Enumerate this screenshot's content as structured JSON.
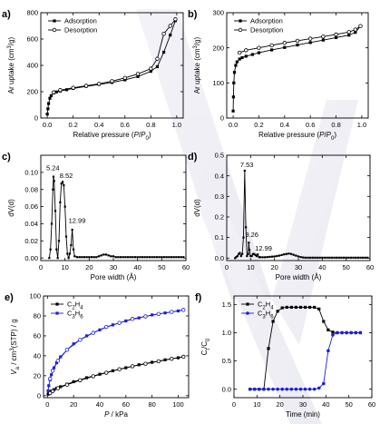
{
  "chart_data": [
    {
      "id": "a",
      "type": "line",
      "panel_label": "a)",
      "xlabel": "Relative pressure (P/P0)",
      "ylabel": "Ar uptake (cm3/g)",
      "xlim": [
        -0.05,
        1.05
      ],
      "ylim": [
        0,
        800
      ],
      "xticks": [
        0.0,
        0.2,
        0.4,
        0.6,
        0.8,
        1.0
      ],
      "xtick_labels": [
        "0.0",
        "0.2",
        "0.4",
        "0.6",
        "0.8",
        "1.0"
      ],
      "yticks": [
        0,
        200,
        400,
        600,
        800
      ],
      "ytick_labels": [
        "0",
        "200",
        "400",
        "600",
        "800"
      ],
      "legend_position": "top-left",
      "series": [
        {
          "name": "Adsorption",
          "marker": "filled-square",
          "color": "#000000",
          "x": [
            0.0,
            0.005,
            0.01,
            0.02,
            0.03,
            0.05,
            0.07,
            0.1,
            0.15,
            0.2,
            0.3,
            0.4,
            0.5,
            0.6,
            0.7,
            0.8,
            0.85,
            0.9,
            0.95,
            0.99
          ],
          "y": [
            30,
            70,
            110,
            150,
            170,
            190,
            198,
            205,
            215,
            225,
            240,
            255,
            270,
            290,
            315,
            355,
            390,
            500,
            630,
            740
          ]
        },
        {
          "name": "Desorption",
          "marker": "open-circle",
          "color": "#000000",
          "x": [
            0.99,
            0.95,
            0.9,
            0.85,
            0.8,
            0.7,
            0.6,
            0.5,
            0.4,
            0.3,
            0.2,
            0.1,
            0.05
          ],
          "y": [
            750,
            700,
            640,
            450,
            375,
            335,
            305,
            280,
            260,
            245,
            230,
            212,
            195
          ]
        }
      ]
    },
    {
      "id": "b",
      "type": "line",
      "panel_label": "b)",
      "xlabel": "Relative pressure (P/P0)",
      "ylabel": "Ar uptake (cm3/g)",
      "xlim": [
        -0.05,
        1.05
      ],
      "ylim": [
        0,
        300
      ],
      "xticks": [
        0.0,
        0.2,
        0.4,
        0.6,
        0.8,
        1.0
      ],
      "xtick_labels": [
        "0.0",
        "0.2",
        "0.4",
        "0.6",
        "0.8",
        "1.0"
      ],
      "yticks": [
        0,
        100,
        200,
        300
      ],
      "ytick_labels": [
        "0",
        "100",
        "200",
        "300"
      ],
      "legend_position": "top-left",
      "series": [
        {
          "name": "Adsorption",
          "marker": "filled-square",
          "color": "#000000",
          "x": [
            0.0,
            0.002,
            0.005,
            0.01,
            0.02,
            0.03,
            0.05,
            0.07,
            0.1,
            0.15,
            0.2,
            0.3,
            0.4,
            0.5,
            0.6,
            0.7,
            0.8,
            0.9,
            0.95,
            0.99
          ],
          "y": [
            20,
            60,
            100,
            130,
            150,
            160,
            168,
            172,
            176,
            181,
            186,
            194,
            201,
            208,
            215,
            222,
            229,
            236,
            244,
            262
          ]
        },
        {
          "name": "Desorption",
          "marker": "open-circle",
          "color": "#000000",
          "x": [
            0.99,
            0.95,
            0.9,
            0.8,
            0.7,
            0.6,
            0.5,
            0.4,
            0.3,
            0.2,
            0.1,
            0.05
          ],
          "y": [
            262,
            252,
            245,
            238,
            232,
            226,
            220,
            214,
            207,
            200,
            193,
            186
          ]
        }
      ]
    },
    {
      "id": "c",
      "type": "line",
      "panel_label": "c)",
      "xlabel": "Pore width (Å)",
      "ylabel": "dV(d)",
      "xlim": [
        0,
        60
      ],
      "ylim": [
        -0.003,
        0.12
      ],
      "xticks": [
        0,
        10,
        20,
        30,
        40,
        50,
        60
      ],
      "xtick_labels": [
        "0",
        "10",
        "20",
        "30",
        "40",
        "50",
        "60"
      ],
      "yticks": [
        0.0,
        0.02,
        0.04,
        0.06,
        0.08,
        0.1
      ],
      "ytick_labels": [
        "0.00",
        "0.02",
        "0.04",
        "0.06",
        "0.08",
        "0.10"
      ],
      "annotations": [
        {
          "text": "5.24",
          "x": 5.24,
          "y": 0.098
        },
        {
          "text": "8.52",
          "x": 8.52,
          "y": 0.089
        },
        {
          "text": "12.99",
          "x": 12.99,
          "y": 0.037
        }
      ],
      "series": [
        {
          "name": "",
          "marker": "filled-square-small",
          "color": "#000000",
          "x": [
            3.5,
            4,
            4.5,
            5,
            5.24,
            5.5,
            6,
            6.5,
            7,
            7.5,
            8,
            8.52,
            9,
            9.5,
            10,
            10.5,
            11,
            11.5,
            12,
            12.5,
            12.99,
            13.5,
            14,
            15,
            16,
            17,
            18,
            19,
            20,
            21,
            22,
            23,
            24,
            25,
            26,
            27,
            28,
            29,
            30,
            31,
            32,
            33,
            34,
            35,
            36,
            37,
            38,
            39,
            40,
            41,
            42,
            43,
            44,
            45,
            46,
            47,
            48,
            49,
            50,
            51,
            52,
            53,
            54,
            55,
            56,
            57,
            58,
            59
          ],
          "y": [
            0.0,
            0.01,
            0.04,
            0.08,
            0.095,
            0.09,
            0.055,
            0.01,
            0.0,
            0.02,
            0.065,
            0.087,
            0.089,
            0.085,
            0.06,
            0.025,
            0.005,
            0.0,
            0.005,
            0.015,
            0.033,
            0.01,
            0.002,
            0.001,
            0.001,
            0.001,
            0.001,
            0.001,
            0.001,
            0.001,
            0.001,
            0.001,
            0.002,
            0.003,
            0.004,
            0.004,
            0.003,
            0.002,
            0.002,
            0.001,
            0.001,
            0.001,
            0.001,
            0.001,
            0.001,
            0.001,
            0.001,
            0.001,
            0.001,
            0.001,
            0.001,
            0.001,
            0.001,
            0.001,
            0.001,
            0.001,
            0.001,
            0.001,
            0.001,
            0.001,
            0.001,
            0.001,
            0.001,
            0.001,
            0.001,
            0.001,
            0.001,
            0.001
          ]
        }
      ]
    },
    {
      "id": "d",
      "type": "line",
      "panel_label": "d)",
      "xlabel": "Pore width (Å)",
      "ylabel": "dV(d)",
      "xlim": [
        0,
        60
      ],
      "ylim": [
        -0.012,
        0.5
      ],
      "xticks": [
        0,
        10,
        20,
        30,
        40,
        50,
        60
      ],
      "xtick_labels": [
        "0",
        "10",
        "20",
        "30",
        "40",
        "50",
        "60"
      ],
      "yticks": [
        0.0,
        0.1,
        0.2,
        0.3,
        0.4,
        0.5
      ],
      "ytick_labels": [
        "0.0",
        "0.1",
        "0.2",
        "0.3",
        "0.4",
        "0.5"
      ],
      "annotations": [
        {
          "text": "7.53",
          "x": 7.53,
          "y": 0.425
        },
        {
          "text": "9.26",
          "x": 9.26,
          "y": 0.08
        },
        {
          "text": "12.99",
          "x": 12.99,
          "y": 0.02
        }
      ],
      "series": [
        {
          "name": "",
          "marker": "filled-square-small",
          "color": "#000000",
          "x": [
            3.5,
            4,
            4.5,
            5,
            5.5,
            6,
            6.5,
            7,
            7.53,
            8,
            8.5,
            9,
            9.26,
            9.5,
            10,
            10.5,
            11,
            11.5,
            12,
            12.5,
            12.99,
            13.5,
            14,
            15,
            16,
            17,
            18,
            19,
            20,
            21,
            22,
            23,
            24,
            25,
            26,
            27,
            28,
            29,
            30,
            31,
            32,
            33,
            34,
            35,
            36,
            37,
            38,
            39,
            40,
            41,
            42,
            43,
            44,
            45,
            46,
            47,
            48,
            49,
            50,
            51,
            52,
            53,
            54,
            55,
            56,
            57,
            58,
            59
          ],
          "y": [
            0.0,
            0.005,
            0.01,
            0.02,
            0.025,
            0.01,
            0.02,
            0.1,
            0.425,
            0.15,
            0.01,
            0.02,
            0.075,
            0.04,
            0.01,
            0.01,
            0.02,
            0.02,
            0.015,
            0.01,
            0.018,
            0.005,
            0.004,
            0.004,
            0.004,
            0.005,
            0.006,
            0.007,
            0.008,
            0.01,
            0.012,
            0.015,
            0.018,
            0.02,
            0.022,
            0.02,
            0.016,
            0.012,
            0.008,
            0.005,
            0.003,
            0.002,
            0.002,
            0.002,
            0.002,
            0.002,
            0.002,
            0.002,
            0.002,
            0.002,
            0.002,
            0.002,
            0.002,
            0.002,
            0.002,
            0.002,
            0.002,
            0.002,
            0.002,
            0.002,
            0.002,
            0.002,
            0.002,
            0.002,
            0.002,
            0.002,
            0.002,
            0.002
          ]
        }
      ]
    },
    {
      "id": "e",
      "type": "line",
      "panel_label": "e)",
      "xlabel": "P / kPa",
      "ylabel": "Va / cm3(STP) / g",
      "xlim": [
        -3,
        108
      ],
      "ylim": [
        -2,
        100
      ],
      "xticks": [
        0,
        20,
        40,
        60,
        80,
        100
      ],
      "xtick_labels": [
        "0",
        "20",
        "40",
        "60",
        "80",
        "100"
      ],
      "yticks": [
        0,
        20,
        40,
        60,
        80,
        100
      ],
      "ytick_labels": [
        "0",
        "20",
        "40",
        "60",
        "80",
        "100"
      ],
      "legend_position": "top-left",
      "series": [
        {
          "name": "C2H4",
          "marker": "filled-square",
          "color": "#000000",
          "x": [
            0.5,
            1,
            2,
            3,
            5,
            7,
            10,
            15,
            20,
            30,
            40,
            50,
            60,
            70,
            80,
            90,
            100,
            104
          ],
          "y": [
            1.5,
            2.5,
            3.5,
            4.5,
            6,
            7.5,
            9,
            11.5,
            14,
            18,
            21.5,
            25,
            28,
            31,
            33.5,
            36,
            38,
            39
          ]
        },
        {
          "name": "C2H4",
          "marker": "open-circle",
          "color": "#000000",
          "x": [
            104,
            95,
            85,
            75,
            65,
            55,
            45,
            35,
            25,
            15,
            8,
            4,
            2
          ],
          "y": [
            39,
            37,
            34.5,
            32,
            29.5,
            26.5,
            23,
            19.5,
            15.5,
            11,
            7.5,
            4.5,
            2.5
          ]
        },
        {
          "name": "C3H6",
          "marker": "filled-square",
          "color": "#1f1fd6",
          "x": [
            0.5,
            1,
            2,
            3,
            5,
            7,
            10,
            15,
            20,
            30,
            40,
            50,
            60,
            70,
            80,
            90,
            100,
            104
          ],
          "y": [
            5,
            10,
            16,
            21,
            28,
            33,
            39,
            46,
            52,
            60,
            66,
            71,
            75,
            78,
            81,
            83,
            85,
            86
          ]
        },
        {
          "name": "C3H6",
          "marker": "open-circle",
          "color": "#1f1fd6",
          "x": [
            104,
            95,
            85,
            75,
            65,
            55,
            45,
            35,
            25,
            15,
            8,
            4,
            2
          ],
          "y": [
            86,
            84,
            82,
            79.5,
            77,
            73,
            69,
            63,
            56,
            46,
            35,
            25,
            17
          ]
        }
      ]
    },
    {
      "id": "f",
      "type": "line",
      "panel_label": "f)",
      "xlabel": "Time (min)",
      "ylabel": "Ct/C0",
      "xlim": [
        0,
        60
      ],
      "ylim": [
        -0.15,
        1.65
      ],
      "xticks": [
        0,
        10,
        20,
        30,
        40,
        50,
        60
      ],
      "xtick_labels": [
        "0",
        "10",
        "20",
        "30",
        "40",
        "50",
        "60"
      ],
      "yticks": [
        0.0,
        0.5,
        1.0,
        1.5
      ],
      "ytick_labels": [
        "0.0",
        "0.5",
        "1.0",
        "1.5"
      ],
      "legend_position": "top-left",
      "series": [
        {
          "name": "C2H4",
          "marker": "filled-square",
          "color": "#000000",
          "x": [
            7,
            9,
            11,
            13,
            15,
            17,
            19,
            21,
            23,
            25,
            27,
            29,
            31,
            33,
            35,
            37,
            39,
            41,
            43,
            45,
            47,
            49,
            51,
            53,
            55
          ],
          "y": [
            0,
            0,
            0,
            0,
            0.72,
            1.2,
            1.38,
            1.44,
            1.45,
            1.45,
            1.45,
            1.45,
            1.45,
            1.45,
            1.45,
            1.42,
            1.2,
            1.05,
            1.01,
            1.0,
            1.0,
            1.0,
            1.0,
            1.0,
            1.0
          ]
        },
        {
          "name": "C3H6",
          "marker": "filled-circle",
          "color": "#1f1fd6",
          "x": [
            7,
            9,
            11,
            13,
            15,
            17,
            19,
            21,
            23,
            25,
            27,
            29,
            31,
            33,
            35,
            37,
            39,
            41,
            43,
            45,
            47,
            49,
            51,
            53,
            55
          ],
          "y": [
            0,
            0,
            0,
            0,
            0,
            0,
            0,
            0,
            0,
            0,
            0,
            0,
            0,
            0,
            0,
            0.02,
            0.1,
            0.68,
            0.96,
            1.0,
            1.0,
            1.0,
            1.0,
            1.0,
            1.0
          ]
        }
      ]
    }
  ]
}
